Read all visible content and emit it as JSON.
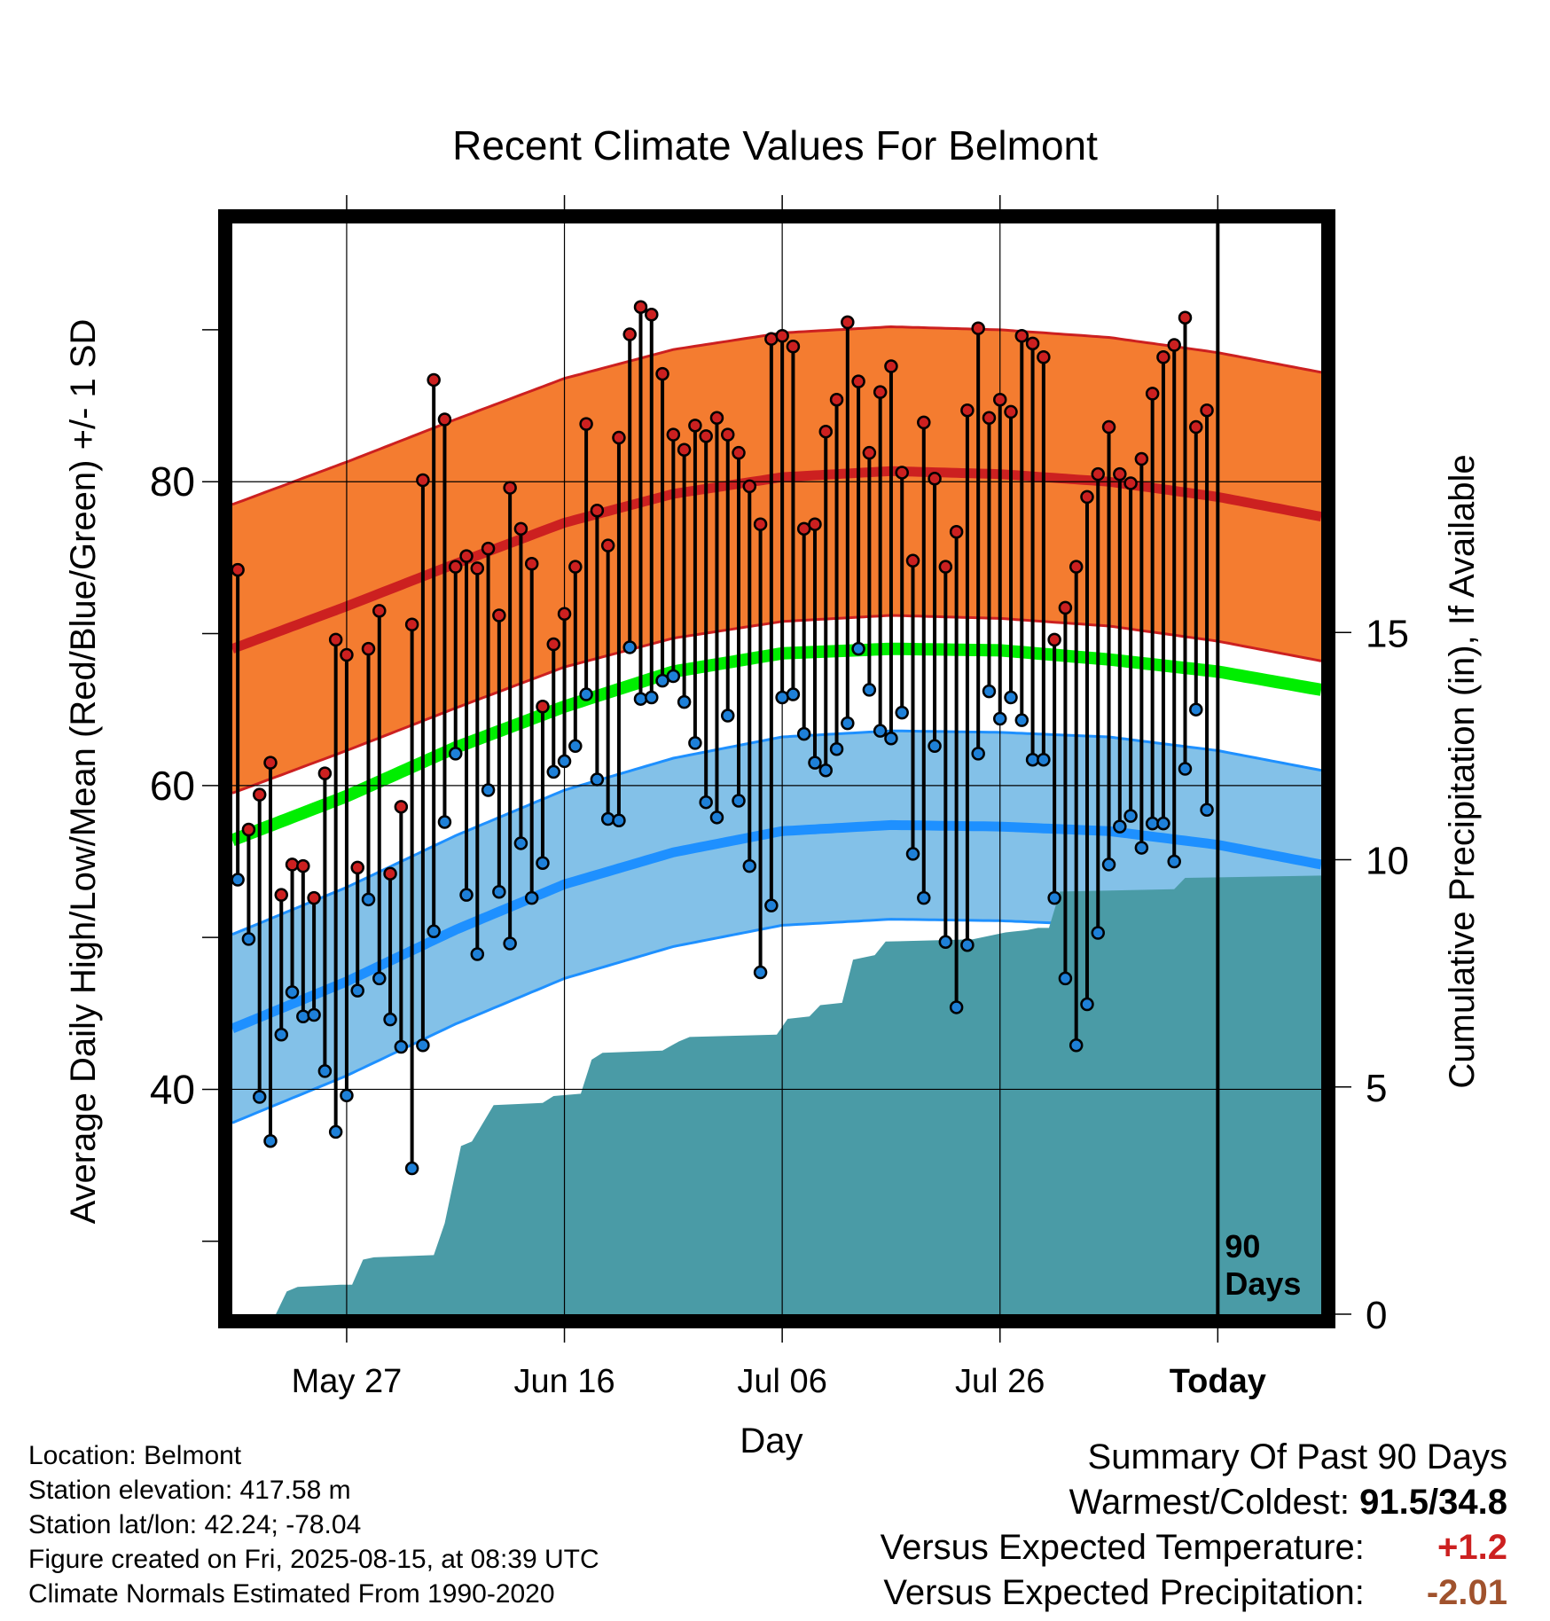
{
  "chart_data": {
    "type": "line",
    "title": "Recent Climate Values For Belmont",
    "xlabel": "Day",
    "ylabel": "Average Daily High/Low/Mean (Red/Blue/Green) +/- 1 SD",
    "y2label": "Cumulative Precipitation (in), If Available",
    "xticks": [
      {
        "day": 10,
        "label": "May 27"
      },
      {
        "day": 30,
        "label": "Jun 16"
      },
      {
        "day": 50,
        "label": "Jul 06"
      },
      {
        "day": 70,
        "label": "Jul 26"
      },
      {
        "day": 90,
        "label": "Today"
      }
    ],
    "xlim": [
      -0.5,
      99.5
    ],
    "ylim": [
      25.2,
      97
    ],
    "yticks": [
      40,
      60,
      80
    ],
    "y2lim": [
      0,
      24
    ],
    "y2ticks": [
      0,
      5,
      10,
      15
    ],
    "today_marker": {
      "day": 90,
      "label_line1": "90",
      "label_line2": "Days"
    },
    "normal_high": [
      {
        "day": -0.5,
        "value": 69.0
      },
      {
        "day": 10,
        "value": 71.8
      },
      {
        "day": 20,
        "value": 74.6
      },
      {
        "day": 30,
        "value": 77.3
      },
      {
        "day": 40,
        "value": 79.2
      },
      {
        "day": 50,
        "value": 80.3
      },
      {
        "day": 60,
        "value": 80.7
      },
      {
        "day": 70,
        "value": 80.5
      },
      {
        "day": 80,
        "value": 80.0
      },
      {
        "day": 90,
        "value": 79.0
      },
      {
        "day": 99.5,
        "value": 77.7
      }
    ],
    "normal_high_sd": 9.5,
    "normal_mean": [
      {
        "day": -0.5,
        "value": 56.4
      },
      {
        "day": 10,
        "value": 59.3
      },
      {
        "day": 20,
        "value": 62.5
      },
      {
        "day": 30,
        "value": 65.2
      },
      {
        "day": 40,
        "value": 67.5
      },
      {
        "day": 50,
        "value": 68.7
      },
      {
        "day": 60,
        "value": 69.0
      },
      {
        "day": 70,
        "value": 68.9
      },
      {
        "day": 80,
        "value": 68.3
      },
      {
        "day": 90,
        "value": 67.5
      },
      {
        "day": 99.5,
        "value": 66.3
      }
    ],
    "normal_low": [
      {
        "day": -0.5,
        "value": 44.0
      },
      {
        "day": 10,
        "value": 47.1
      },
      {
        "day": 20,
        "value": 50.5
      },
      {
        "day": 30,
        "value": 53.5
      },
      {
        "day": 40,
        "value": 55.6
      },
      {
        "day": 50,
        "value": 57.0
      },
      {
        "day": 60,
        "value": 57.4
      },
      {
        "day": 70,
        "value": 57.3
      },
      {
        "day": 80,
        "value": 57.0
      },
      {
        "day": 90,
        "value": 56.1
      },
      {
        "day": 99.5,
        "value": 54.8
      }
    ],
    "normal_low_sd": 6.2,
    "daily_high": [
      74.2,
      57.1,
      59.4,
      61.5,
      52.8,
      54.8,
      54.7,
      52.6,
      60.8,
      69.6,
      68.6,
      54.6,
      69.0,
      71.5,
      54.2,
      58.6,
      70.6,
      80.1,
      86.7,
      84.1,
      74.4,
      75.1,
      74.3,
      75.6,
      71.2,
      79.6,
      76.9,
      74.6,
      65.2,
      69.3,
      71.3,
      74.4,
      83.8,
      78.1,
      75.8,
      82.9,
      89.7,
      91.5,
      91.0,
      87.1,
      83.1,
      82.1,
      83.7,
      83.0,
      84.2,
      83.1,
      81.9,
      79.7,
      77.2,
      89.4,
      89.6,
      88.9,
      76.9,
      77.2,
      83.3,
      85.4,
      90.5,
      86.6,
      81.9,
      85.9,
      87.6,
      80.6,
      74.8,
      83.9,
      80.2,
      74.4,
      76.7,
      84.7,
      90.1,
      84.2,
      85.4,
      84.6,
      89.6,
      89.1,
      88.2,
      69.6,
      71.7,
      74.4,
      79.0,
      80.5,
      83.6,
      80.5,
      79.9,
      81.5,
      85.8,
      88.2,
      89.0,
      90.8,
      83.6,
      84.7
    ],
    "daily_low": [
      53.8,
      49.9,
      39.5,
      36.6,
      43.6,
      46.4,
      44.8,
      44.9,
      41.2,
      37.2,
      39.6,
      46.5,
      52.5,
      47.3,
      44.6,
      42.8,
      34.8,
      42.9,
      50.4,
      57.6,
      62.1,
      52.8,
      48.9,
      59.7,
      53.0,
      49.6,
      56.2,
      52.6,
      54.9,
      60.9,
      61.6,
      62.6,
      66.0,
      60.4,
      57.8,
      57.7,
      69.1,
      65.7,
      65.8,
      66.9,
      67.2,
      65.5,
      62.8,
      58.9,
      57.9,
      64.6,
      59.0,
      54.7,
      47.7,
      52.1,
      65.8,
      66.0,
      63.4,
      61.5,
      61.0,
      62.4,
      64.1,
      69.0,
      66.3,
      63.6,
      63.1,
      64.8,
      55.5,
      52.6,
      62.6,
      49.7,
      45.4,
      49.5,
      62.1,
      66.2,
      64.4,
      65.8,
      64.3,
      61.7,
      61.7,
      52.6,
      47.3,
      42.9,
      45.6,
      50.3,
      54.8,
      57.3,
      58.0,
      55.9,
      57.5,
      57.5,
      55.0,
      61.1,
      65.0,
      58.4
    ],
    "cumulative_precip": [
      {
        "day": -0.5,
        "value": 0.0
      },
      {
        "day": 3.5,
        "value": 0.0
      },
      {
        "day": 4.5,
        "value": 0.5
      },
      {
        "day": 5.5,
        "value": 0.6
      },
      {
        "day": 9.5,
        "value": 0.65
      },
      {
        "day": 10.5,
        "value": 0.65
      },
      {
        "day": 11.5,
        "value": 1.2
      },
      {
        "day": 12.5,
        "value": 1.25
      },
      {
        "day": 18,
        "value": 1.3
      },
      {
        "day": 19,
        "value": 2.0
      },
      {
        "day": 20.5,
        "value": 3.7
      },
      {
        "day": 21.5,
        "value": 3.8
      },
      {
        "day": 23.5,
        "value": 4.6
      },
      {
        "day": 28,
        "value": 4.65
      },
      {
        "day": 29,
        "value": 4.8
      },
      {
        "day": 31.5,
        "value": 4.85
      },
      {
        "day": 32.5,
        "value": 5.6
      },
      {
        "day": 33.5,
        "value": 5.75
      },
      {
        "day": 39,
        "value": 5.8
      },
      {
        "day": 40.5,
        "value": 6.0
      },
      {
        "day": 41.5,
        "value": 6.1
      },
      {
        "day": 49.5,
        "value": 6.15
      },
      {
        "day": 50.5,
        "value": 6.5
      },
      {
        "day": 52.5,
        "value": 6.55
      },
      {
        "day": 53.5,
        "value": 6.8
      },
      {
        "day": 55.5,
        "value": 6.85
      },
      {
        "day": 56.5,
        "value": 7.8
      },
      {
        "day": 58.5,
        "value": 7.9
      },
      {
        "day": 59.5,
        "value": 8.2
      },
      {
        "day": 67.5,
        "value": 8.25
      },
      {
        "day": 70.5,
        "value": 8.4
      },
      {
        "day": 72.5,
        "value": 8.45
      },
      {
        "day": 73.5,
        "value": 8.5
      },
      {
        "day": 74.5,
        "value": 8.5
      },
      {
        "day": 75.5,
        "value": 9.3
      },
      {
        "day": 86,
        "value": 9.35
      },
      {
        "day": 87,
        "value": 9.6
      },
      {
        "day": 99.5,
        "value": 9.65
      }
    ]
  },
  "info": {
    "location": "Location: Belmont",
    "elevation": "Station elevation: 417.58 m",
    "latlon": "Station lat/lon: 42.24; -78.04",
    "created": "Figure created on Fri, 2025-08-15, at 08:39 UTC",
    "normals": "Climate Normals Estimated From 1990-2020"
  },
  "summary": {
    "heading": "Summary Of Past 90 Days",
    "warmcold_label": "Warmest/Coldest:",
    "warmcold_value": "91.5/34.8",
    "temp_label": "Versus Expected Temperature:",
    "temp_value": "+1.2",
    "precip_label": "Versus Expected Precipitation:",
    "precip_value": "-2.01"
  },
  "colors": {
    "high_band": "#f47c30",
    "high_line": "#cc2020",
    "mean_line": "#00ee00",
    "low_band": "#83c1e8",
    "low_line": "#1e90ff",
    "precip_fill": "#4a9ba6",
    "high_dot": "#cc2020",
    "low_dot": "#1e80d8"
  }
}
